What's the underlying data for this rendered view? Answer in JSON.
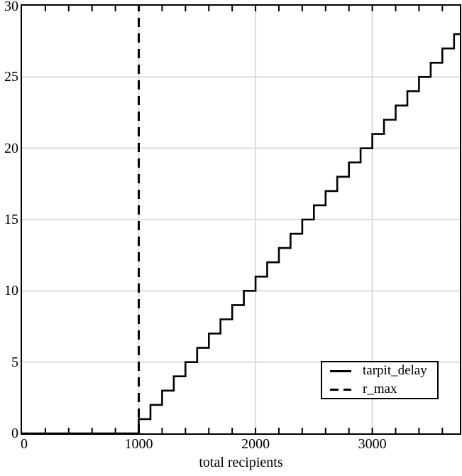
{
  "chart_data": {
    "type": "line",
    "step_style": "post",
    "title": "",
    "xlabel": "total recipients",
    "ylabel": "",
    "xlim": [
      0,
      3750
    ],
    "ylim": [
      0,
      30
    ],
    "x_major_ticks": [
      0,
      1000,
      2000,
      3000
    ],
    "x_tick_labels": [
      "0",
      "1000",
      "2000",
      "3000"
    ],
    "x_minor_tick_step": 200,
    "y_major_ticks": [
      0,
      5,
      10,
      15,
      20,
      25,
      30
    ],
    "y_tick_labels": [
      "0",
      "5",
      "10",
      "15",
      "20",
      "25",
      "30"
    ],
    "grid": "major",
    "grid_color": "#dcdcdc",
    "line_color": "#000000",
    "background": "#ffffff",
    "legend_position": "inside-bottom-right",
    "series": [
      {
        "name": "tarpit_delay",
        "style": "solid-step",
        "color": "#000000",
        "points": [
          [
            0,
            0
          ],
          [
            1000,
            1
          ],
          [
            1100,
            2
          ],
          [
            1200,
            3
          ],
          [
            1300,
            4
          ],
          [
            1400,
            5
          ],
          [
            1500,
            6
          ],
          [
            1600,
            7
          ],
          [
            1700,
            8
          ],
          [
            1800,
            9
          ],
          [
            1900,
            10
          ],
          [
            2000,
            11
          ],
          [
            2100,
            12
          ],
          [
            2200,
            13
          ],
          [
            2300,
            14
          ],
          [
            2400,
            15
          ],
          [
            2500,
            16
          ],
          [
            2600,
            17
          ],
          [
            2700,
            18
          ],
          [
            2800,
            19
          ],
          [
            2900,
            20
          ],
          [
            3000,
            21
          ],
          [
            3100,
            22
          ],
          [
            3200,
            23
          ],
          [
            3300,
            24
          ],
          [
            3400,
            25
          ],
          [
            3500,
            26
          ],
          [
            3600,
            27
          ],
          [
            3700,
            28
          ],
          [
            3750,
            28
          ]
        ]
      },
      {
        "name": "r_max",
        "style": "dashed-vertical",
        "color": "#000000",
        "x": 1000,
        "y_span": [
          0,
          30
        ]
      }
    ]
  },
  "legend": {
    "entries": [
      {
        "label": "tarpit_delay",
        "style": "solid"
      },
      {
        "label": "r_max",
        "style": "dashed"
      }
    ]
  }
}
